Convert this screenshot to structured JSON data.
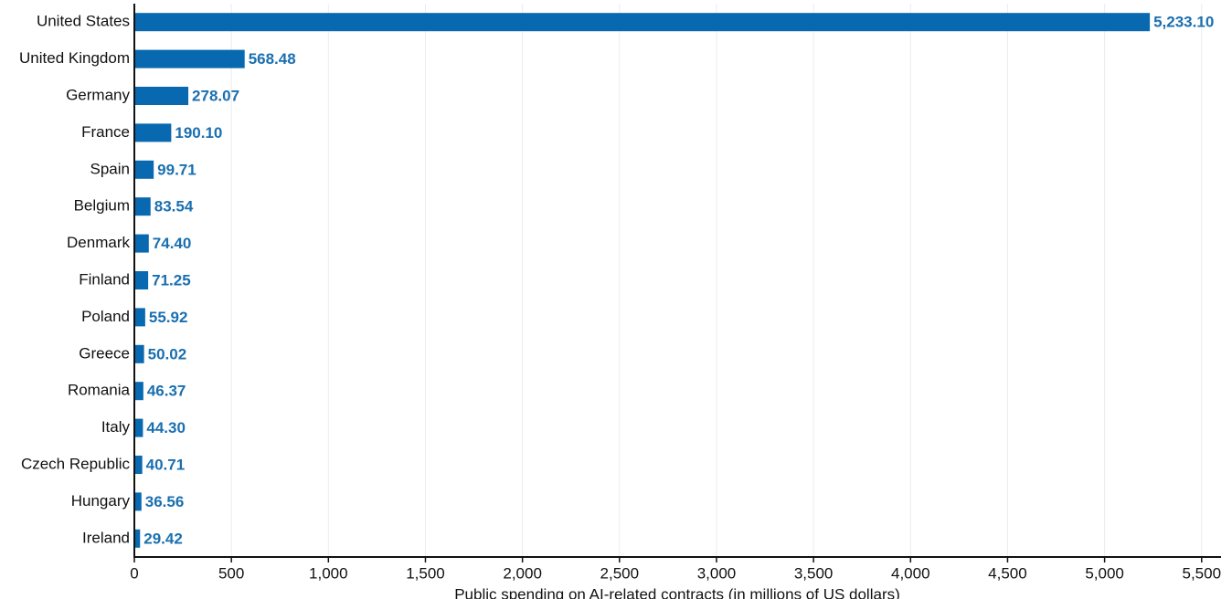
{
  "chart_data": {
    "type": "bar",
    "orientation": "horizontal",
    "x_label": "Public spending on AI-related contracts (in millions of US dollars)",
    "categories": [
      "United States",
      "United Kingdom",
      "Germany",
      "France",
      "Spain",
      "Belgium",
      "Denmark",
      "Finland",
      "Poland",
      "Greece",
      "Romania",
      "Italy",
      "Czech Republic",
      "Hungary",
      "Ireland"
    ],
    "values": [
      5233.1,
      568.48,
      278.07,
      190.1,
      99.71,
      83.54,
      74.4,
      71.25,
      55.92,
      50.02,
      46.37,
      44.3,
      40.71,
      36.56,
      29.42
    ],
    "value_labels": [
      "5,233.10",
      "568.48",
      "278.07",
      "190.10",
      "99.71",
      "83.54",
      "74.40",
      "71.25",
      "55.92",
      "50.02",
      "46.37",
      "44.30",
      "40.71",
      "36.56",
      "29.42"
    ],
    "color": "#0868b0",
    "xlim": [
      0,
      5600
    ],
    "xticks": [
      0,
      500,
      {
        "value": 1000,
        "label": "1,000"
      },
      {
        "value": 1500,
        "label": "1,500"
      },
      {
        "value": 2000,
        "label": "2,000"
      },
      {
        "value": 2500,
        "label": "2,500"
      },
      {
        "value": 3000,
        "label": "3,000"
      },
      {
        "value": 3500,
        "label": "3,500"
      },
      {
        "value": 4000,
        "label": "4,000"
      },
      {
        "value": 4500,
        "label": "4,500"
      },
      {
        "value": 5000,
        "label": "5,000"
      },
      {
        "value": 5500,
        "label": "5,500"
      }
    ],
    "grid": true
  }
}
